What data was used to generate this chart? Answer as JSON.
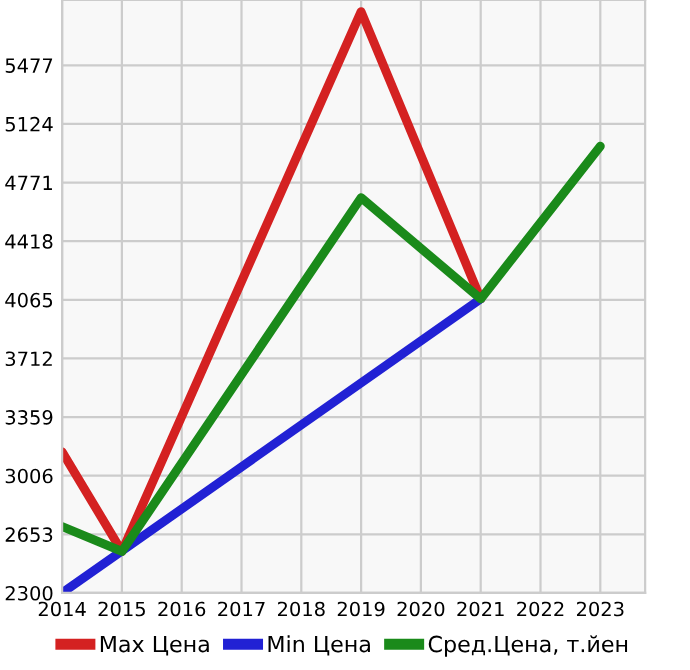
{
  "chart_data": {
    "type": "line",
    "x": [
      2014,
      2015,
      2019,
      2021
    ],
    "series": [
      {
        "name": "Max Цена",
        "color": "#d42121",
        "values": [
          3150,
          2550,
          5800,
          4070
        ]
      },
      {
        "name": "Min Цена",
        "color": "#2121d4",
        "x": [
          2014,
          2021
        ],
        "values": [
          2300,
          4070
        ]
      },
      {
        "name": "Сред.Цена, т.йен",
        "color": "#1a8a1a",
        "x": [
          2014,
          2015,
          2019,
          2021,
          2023
        ],
        "values": [
          2700,
          2550,
          4680,
          4070,
          4990
        ]
      }
    ],
    "xlim": [
      2014,
      2023.75
    ],
    "xticks": [
      2014,
      2015,
      2016,
      2017,
      2018,
      2019,
      2020,
      2021,
      2022,
      2023
    ],
    "ylim": [
      2300,
      5870
    ],
    "yticks": [
      2300,
      2653,
      3006,
      3359,
      3712,
      4065,
      4418,
      4771,
      5124,
      5477
    ],
    "grid": true,
    "legend": "bottom",
    "marker": "none",
    "line_style": "solid"
  }
}
